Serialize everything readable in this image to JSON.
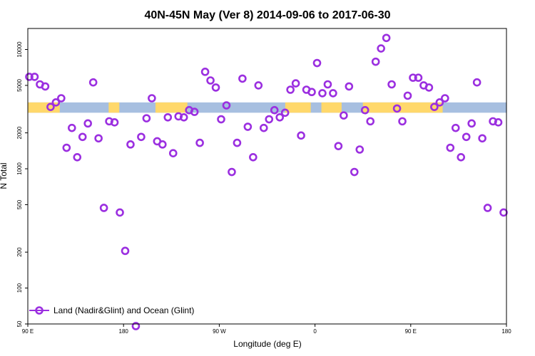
{
  "chart_data": {
    "type": "scatter",
    "title": "40N-45N May (Ver 8)   2014-09-06 to 2017-06-30",
    "xlabel": "Longitude (deg E)",
    "ylabel": "N Total",
    "x_axis": {
      "min": 90,
      "max": 450,
      "ticks": [
        {
          "value": 90,
          "label": "90 E"
        },
        {
          "value": 180,
          "label": "180"
        },
        {
          "value": 270,
          "label": "90 W"
        },
        {
          "value": 360,
          "label": "0"
        },
        {
          "value": 450,
          "label": "90 E"
        },
        {
          "value": 540,
          "label": "180"
        }
      ],
      "range_label_min": "90 E",
      "range_label_max": "180"
    },
    "y_axis": {
      "scale": "log",
      "min": 50,
      "max": 15000,
      "ticks": [
        {
          "value": 50,
          "label": "50"
        },
        {
          "value": 100,
          "label": "100"
        },
        {
          "value": 200,
          "label": "200"
        },
        {
          "value": 500,
          "label": "500"
        },
        {
          "value": 1000,
          "label": "1000"
        },
        {
          "value": 2000,
          "label": "2000"
        },
        {
          "value": 5000,
          "label": "5000"
        },
        {
          "value": 10000,
          "label": "10000"
        }
      ]
    },
    "legend": {
      "placement": "bottom-left",
      "entries": [
        {
          "label": "Land (Nadir&Glint) and Ocean (Glint)",
          "color": "#9b2fe0"
        }
      ]
    },
    "series": [
      {
        "name": "Land (Nadir&Glint) and Ocean (Glint)",
        "color": "#9b2fe0",
        "x_index": [
          0,
          1,
          2,
          3,
          4,
          5,
          6,
          7,
          8,
          9,
          10,
          11,
          12,
          13,
          14,
          15,
          16,
          17,
          18,
          19,
          20,
          21,
          22,
          23,
          24,
          25,
          26,
          27,
          28,
          29,
          30,
          31,
          32,
          33,
          34,
          35,
          36,
          37,
          38,
          39,
          40,
          41,
          42,
          43,
          44,
          45,
          46,
          47,
          48,
          49,
          50,
          51,
          52,
          53,
          54,
          55,
          56,
          57,
          58,
          59,
          60,
          61,
          62,
          63,
          64,
          65,
          66,
          67,
          68,
          69,
          70,
          71,
          72,
          73,
          74,
          75,
          76,
          77,
          78,
          79,
          80,
          81,
          82,
          83,
          84,
          85,
          86,
          87,
          88,
          89
        ],
        "values": [
          5900,
          5900,
          5100,
          4900,
          3300,
          3600,
          3900,
          1500,
          2200,
          1250,
          1850,
          2400,
          5300,
          1800,
          470,
          2500,
          2450,
          430,
          205,
          1600,
          48,
          1850,
          2650,
          3900,
          1700,
          1600,
          2700,
          1350,
          2750,
          2700,
          3100,
          3000,
          1650,
          6500,
          5500,
          4800,
          2600,
          3400,
          940,
          1650,
          5700,
          2250,
          1250,
          5000,
          2200,
          2600,
          3100,
          2700,
          2950,
          4600,
          5200,
          1900,
          4600,
          4400,
          7700,
          4300,
          5100,
          4300,
          1550,
          2800,
          4900,
          940,
          1450,
          3100,
          2500,
          7900,
          10200,
          12500,
          5100,
          3200,
          2500,
          4100,
          5800,
          5800,
          5000,
          4800,
          3300,
          3600,
          3900,
          1500,
          2200,
          1250,
          1850,
          2400,
          5300,
          1800,
          470,
          2500,
          2450,
          430
        ],
        "x_values_deg": []
      }
    ],
    "background_band": {
      "y_range": [
        2950,
        3600
      ],
      "colors": {
        "land": "#ffd86b",
        "ocean": "#a7bfe0"
      },
      "land_segments_deg": [
        [
          90,
          120
        ],
        [
          166,
          176
        ],
        [
          210,
          240
        ],
        [
          332,
          356
        ],
        [
          366,
          385
        ],
        [
          405,
          480
        ]
      ]
    },
    "grid": false
  }
}
